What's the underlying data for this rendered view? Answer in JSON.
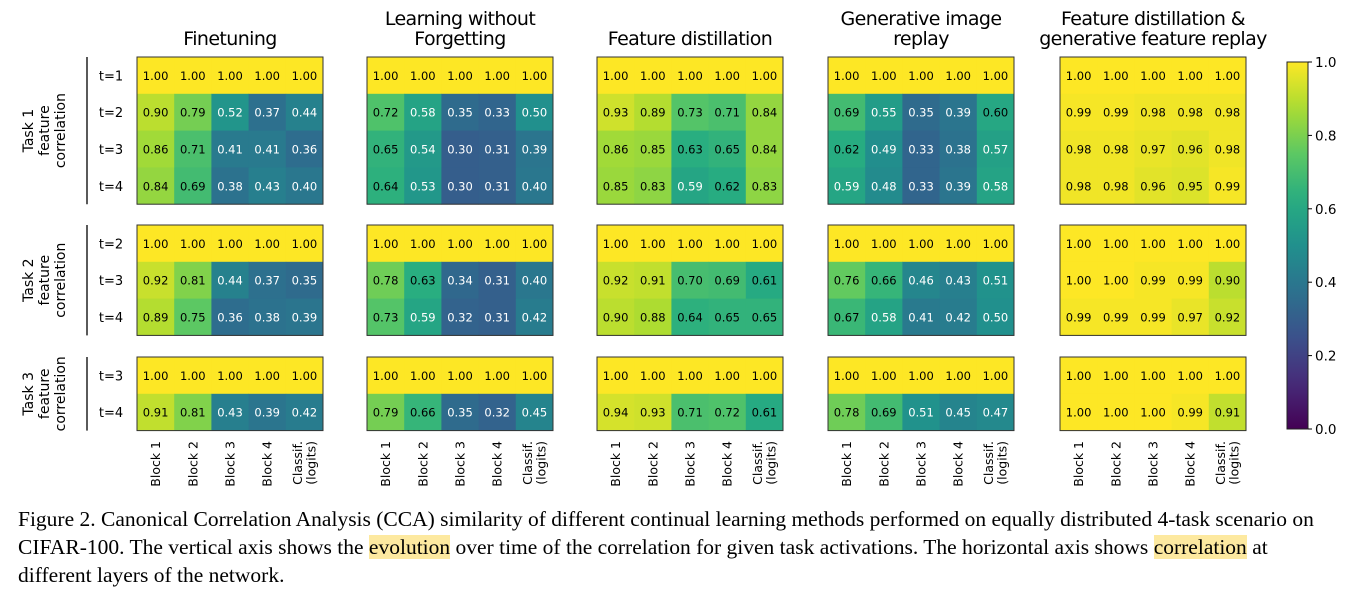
{
  "chart_data": {
    "type": "heatmap",
    "colormap": "viridis",
    "vmin": 0.0,
    "vmax": 1.0,
    "colorbar_ticks": [
      "0.0",
      "0.2",
      "0.4",
      "0.6",
      "0.8",
      "1.0"
    ],
    "columns": [
      "Block 1",
      "Block 2",
      "Block 3",
      "Block 4",
      "Classif.\n(logits)"
    ],
    "row_groups": [
      {
        "label": "Task 1\nfeature\ncorrelation",
        "rows": [
          "t=1",
          "t=2",
          "t=3",
          "t=4"
        ]
      },
      {
        "label": "Task 2\nfeature\ncorrelation",
        "rows": [
          "t=2",
          "t=3",
          "t=4"
        ]
      },
      {
        "label": "Task 3\nfeature\ncorrelation",
        "rows": [
          "t=3",
          "t=4"
        ]
      }
    ],
    "methods": [
      {
        "title": "Finetuning",
        "groups": [
          [
            [
              1.0,
              1.0,
              1.0,
              1.0,
              1.0
            ],
            [
              0.9,
              0.79,
              0.52,
              0.37,
              0.44
            ],
            [
              0.86,
              0.71,
              0.41,
              0.41,
              0.36
            ],
            [
              0.84,
              0.69,
              0.38,
              0.43,
              0.4
            ]
          ],
          [
            [
              1.0,
              1.0,
              1.0,
              1.0,
              1.0
            ],
            [
              0.92,
              0.81,
              0.44,
              0.37,
              0.35
            ],
            [
              0.89,
              0.75,
              0.36,
              0.38,
              0.39
            ]
          ],
          [
            [
              1.0,
              1.0,
              1.0,
              1.0,
              1.0
            ],
            [
              0.91,
              0.81,
              0.43,
              0.39,
              0.42
            ]
          ]
        ]
      },
      {
        "title": "Learning without\nForgetting",
        "groups": [
          [
            [
              1.0,
              1.0,
              1.0,
              1.0,
              1.0
            ],
            [
              0.72,
              0.58,
              0.35,
              0.33,
              0.5
            ],
            [
              0.65,
              0.54,
              0.3,
              0.31,
              0.39
            ],
            [
              0.64,
              0.53,
              0.3,
              0.31,
              0.4
            ]
          ],
          [
            [
              1.0,
              1.0,
              1.0,
              1.0,
              1.0
            ],
            [
              0.78,
              0.63,
              0.34,
              0.31,
              0.4
            ],
            [
              0.73,
              0.59,
              0.32,
              0.31,
              0.42
            ]
          ],
          [
            [
              1.0,
              1.0,
              1.0,
              1.0,
              1.0
            ],
            [
              0.79,
              0.66,
              0.35,
              0.32,
              0.45
            ]
          ]
        ]
      },
      {
        "title": "Feature distillation",
        "groups": [
          [
            [
              1.0,
              1.0,
              1.0,
              1.0,
              1.0
            ],
            [
              0.93,
              0.89,
              0.73,
              0.71,
              0.84
            ],
            [
              0.86,
              0.85,
              0.63,
              0.65,
              0.84
            ],
            [
              0.85,
              0.83,
              0.59,
              0.62,
              0.83
            ]
          ],
          [
            [
              1.0,
              1.0,
              1.0,
              1.0,
              1.0
            ],
            [
              0.92,
              0.91,
              0.7,
              0.69,
              0.61
            ],
            [
              0.9,
              0.88,
              0.64,
              0.65,
              0.65
            ]
          ],
          [
            [
              1.0,
              1.0,
              1.0,
              1.0,
              1.0
            ],
            [
              0.94,
              0.93,
              0.71,
              0.72,
              0.61
            ]
          ]
        ]
      },
      {
        "title": "Generative image\nreplay",
        "groups": [
          [
            [
              1.0,
              1.0,
              1.0,
              1.0,
              1.0
            ],
            [
              0.69,
              0.55,
              0.35,
              0.39,
              0.6
            ],
            [
              0.62,
              0.49,
              0.33,
              0.38,
              0.57
            ],
            [
              0.59,
              0.48,
              0.33,
              0.39,
              0.58
            ]
          ],
          [
            [
              1.0,
              1.0,
              1.0,
              1.0,
              1.0
            ],
            [
              0.76,
              0.66,
              0.46,
              0.43,
              0.51
            ],
            [
              0.67,
              0.58,
              0.41,
              0.42,
              0.5
            ]
          ],
          [
            [
              1.0,
              1.0,
              1.0,
              1.0,
              1.0
            ],
            [
              0.78,
              0.69,
              0.51,
              0.45,
              0.47
            ]
          ]
        ]
      },
      {
        "title": "Feature distillation &\ngenerative feature replay",
        "groups": [
          [
            [
              1.0,
              1.0,
              1.0,
              1.0,
              1.0
            ],
            [
              0.99,
              0.99,
              0.98,
              0.98,
              0.98
            ],
            [
              0.98,
              0.98,
              0.97,
              0.96,
              0.98
            ],
            [
              0.98,
              0.98,
              0.96,
              0.95,
              0.99
            ]
          ],
          [
            [
              1.0,
              1.0,
              1.0,
              1.0,
              1.0
            ],
            [
              1.0,
              1.0,
              0.99,
              0.99,
              0.9
            ],
            [
              0.99,
              0.99,
              0.99,
              0.97,
              0.92
            ]
          ],
          [
            [
              1.0,
              1.0,
              1.0,
              1.0,
              1.0
            ],
            [
              1.0,
              1.0,
              1.0,
              0.99,
              0.91
            ]
          ]
        ]
      }
    ]
  },
  "caption": {
    "part1": "Figure 2. Canonical Correlation Analysis (CCA) similarity of different continual learning methods performed on equally distributed 4-task scenario on CIFAR-100. The vertical axis shows the ",
    "highlight1": "evolution",
    "part2": " over time of the correlation for given task activations. The horizontal axis shows ",
    "highlight2": "correlation",
    "part3": " at different layers of the network."
  }
}
